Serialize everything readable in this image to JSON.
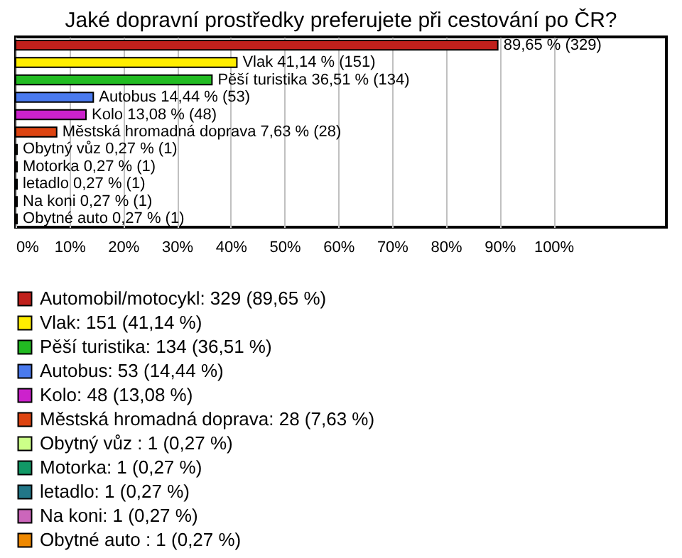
{
  "chart_data": {
    "type": "bar",
    "orientation": "horizontal",
    "title": "Jaké dopravní prostředky preferujete při cestování po ČR?",
    "categories": [
      null,
      null,
      null,
      null,
      null,
      null,
      null,
      null,
      null,
      null,
      null
    ],
    "series": [
      {
        "name": "Automobil/motocykl: 329 (89,65 %)",
        "color": "#c0201c",
        "values": [
          89.65,
          null,
          null,
          null,
          null,
          null,
          null,
          null,
          null,
          null,
          null
        ],
        "value_labels": [
          "89,65 % (329)",
          null,
          null,
          null,
          null,
          null,
          null,
          null,
          null,
          null,
          null
        ]
      },
      {
        "name": "Vlak: 151 (41,14 %)",
        "color": "#ffee00",
        "values": [
          null,
          41.14,
          null,
          null,
          null,
          null,
          null,
          null,
          null,
          null,
          null
        ],
        "value_labels": [
          null,
          "Vlak 41,14 % (151)",
          null,
          null,
          null,
          null,
          null,
          null,
          null,
          null,
          null
        ]
      },
      {
        "name": "Pěší turistika: 134 (36,51 %)",
        "color": "#22bb22",
        "values": [
          null,
          null,
          36.51,
          null,
          null,
          null,
          null,
          null,
          null,
          null,
          null
        ],
        "value_labels": [
          null,
          null,
          "Pěší turistika 36,51 % (134)",
          null,
          null,
          null,
          null,
          null,
          null,
          null,
          null
        ]
      },
      {
        "name": "Autobus: 53 (14,44 %)",
        "color": "#4a7aee",
        "values": [
          null,
          null,
          null,
          14.44,
          null,
          null,
          null,
          null,
          null,
          null,
          null
        ],
        "value_labels": [
          null,
          null,
          null,
          "Autobus 14,44 % (53)",
          null,
          null,
          null,
          null,
          null,
          null,
          null
        ]
      },
      {
        "name": "Kolo: 48 (13,08 %)",
        "color": "#cc22cc",
        "values": [
          null,
          null,
          null,
          null,
          13.08,
          null,
          null,
          null,
          null,
          null,
          null
        ],
        "value_labels": [
          null,
          null,
          null,
          null,
          "Kolo 13,08 % (48)",
          null,
          null,
          null,
          null,
          null,
          null
        ]
      },
      {
        "name": "Městská hromadná doprava: 28 (7,63 %)",
        "color": "#dd4411",
        "values": [
          null,
          null,
          null,
          null,
          null,
          7.63,
          null,
          null,
          null,
          null,
          null
        ],
        "value_labels": [
          null,
          null,
          null,
          null,
          null,
          "Městská hromadná doprava 7,63 % (28)",
          null,
          null,
          null,
          null,
          null
        ]
      },
      {
        "name": "Obytný vůz : 1 (0,27 %)",
        "color": "#ccff88",
        "values": [
          null,
          null,
          null,
          null,
          null,
          null,
          0.27,
          null,
          null,
          null,
          null
        ],
        "value_labels": [
          null,
          null,
          null,
          null,
          null,
          null,
          "Obytný vůz  0,27 % (1)",
          null,
          null,
          null,
          null
        ]
      },
      {
        "name": "Motorka: 1 (0,27 %)",
        "color": "#119966",
        "values": [
          null,
          null,
          null,
          null,
          null,
          null,
          null,
          0.27,
          null,
          null,
          null
        ],
        "value_labels": [
          null,
          null,
          null,
          null,
          null,
          null,
          null,
          "Motorka 0,27 % (1)",
          null,
          null,
          null
        ]
      },
      {
        "name": "letadlo: 1 (0,27 %)",
        "color": "#227788",
        "values": [
          null,
          null,
          null,
          null,
          null,
          null,
          null,
          null,
          0.27,
          null,
          null
        ],
        "value_labels": [
          null,
          null,
          null,
          null,
          null,
          null,
          null,
          null,
          "letadlo 0,27 % (1)",
          null,
          null
        ]
      },
      {
        "name": "Na koni: 1 (0,27 %)",
        "color": "#cc66bb",
        "values": [
          null,
          null,
          null,
          null,
          null,
          null,
          null,
          null,
          null,
          0.27,
          null
        ],
        "value_labels": [
          null,
          null,
          null,
          null,
          null,
          null,
          null,
          null,
          null,
          "Na koni 0,27 % (1)",
          null
        ]
      },
      {
        "name": "Obytné auto : 1 (0,27 %)",
        "color": "#ee8800",
        "values": [
          null,
          null,
          null,
          null,
          null,
          null,
          null,
          null,
          null,
          null,
          0.27
        ],
        "value_labels": [
          null,
          null,
          null,
          null,
          null,
          null,
          null,
          null,
          null,
          null,
          "Obytné auto  0,27 % (1)"
        ]
      }
    ],
    "xlim": [
      0,
      121
    ],
    "xticks": [
      {
        "value": 0,
        "label": "0%"
      },
      {
        "value": 10,
        "label": "10%"
      },
      {
        "value": 20,
        "label": "20%"
      },
      {
        "value": 30,
        "label": "30%"
      },
      {
        "value": 40,
        "label": "40%"
      },
      {
        "value": 50,
        "label": "50%"
      },
      {
        "value": 60,
        "label": "60%"
      },
      {
        "value": 70,
        "label": "70%"
      },
      {
        "value": 80,
        "label": "80%"
      },
      {
        "value": 90,
        "label": "90%"
      },
      {
        "value": 100,
        "label": "100%"
      }
    ],
    "grid": "x",
    "legend": "bottom",
    "tick_labels": "x"
  }
}
